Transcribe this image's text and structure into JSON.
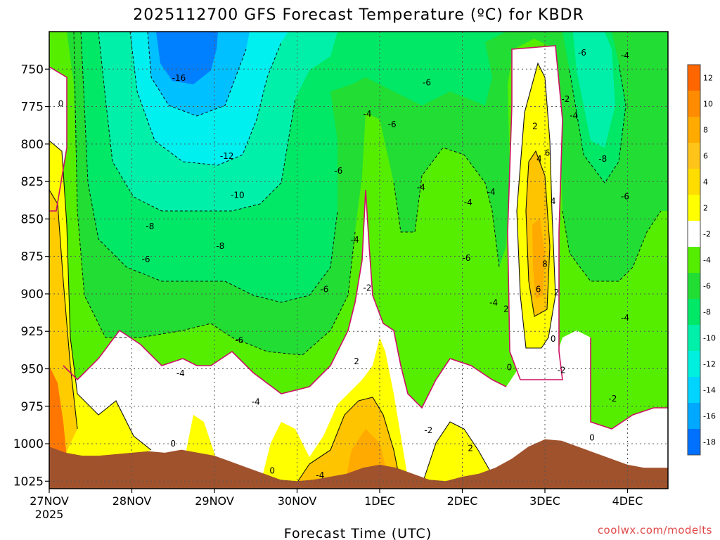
{
  "chart_data": {
    "type": "heatmap",
    "title": "2025112700  GFS Forecast Temperature (ºC) for KBDR",
    "xlabel": "Forecast Time (UTC)",
    "ylabel": "",
    "credit": "coolwx.com/modelts",
    "x_ticks": [
      "27NOV",
      "28NOV",
      "29NOV",
      "30NOV",
      "1DEC",
      "2DEC",
      "3DEC",
      "4DEC"
    ],
    "x_tick_day_offset": [
      0,
      1,
      2,
      3,
      4,
      5,
      6,
      7
    ],
    "x_year": "2025",
    "xlim_days": [
      0,
      7.5
    ],
    "y_ticks": [
      750,
      775,
      800,
      825,
      850,
      875,
      900,
      925,
      950,
      975,
      1000,
      1025
    ],
    "ylim_hpa": [
      1030,
      725
    ],
    "colorbar": {
      "levels": [
        12,
        10,
        8,
        6,
        4,
        2,
        -2,
        -4,
        -6,
        -8,
        -10,
        -12,
        -14,
        -16,
        -18
      ],
      "colors": [
        "#ff6600",
        "#ff8c00",
        "#ffaa00",
        "#ffc41a",
        "#ffdd00",
        "#ffff00",
        "#ffffff",
        "#55ee00",
        "#22dd33",
        "#00e866",
        "#00f0aa",
        "#00f0e0",
        "#00d4ff",
        "#00a8ff",
        "#0070ff"
      ]
    },
    "fill_colors": {
      "ground": "#a0522d",
      "warm": "#ff9900",
      "yellow": "#ffff00",
      "orange_light": "#ffcc00",
      "white": "#ffffff",
      "green_dark": "#55ee00",
      "green": "#22dd33",
      "green_mint": "#00e866",
      "teal": "#00f0aa",
      "cyan": "#00f0ff",
      "blue_light": "#00c0ff",
      "blue": "#0080ff",
      "zero_line": "#cc1166"
    },
    "series": [
      {
        "name": "ground (surface pressure hPa)",
        "x_days": [
          0,
          0.2,
          0.4,
          0.6,
          0.8,
          1.0,
          1.2,
          1.4,
          1.6,
          1.8,
          2.0,
          2.2,
          2.4,
          2.6,
          2.8,
          3.0,
          3.2,
          3.4,
          3.6,
          3.8,
          4.0,
          4.2,
          4.4,
          4.6,
          4.8,
          5.0,
          5.2,
          5.4,
          5.6,
          5.8,
          6.0,
          6.2,
          6.4,
          6.6,
          6.8,
          7.0,
          7.2,
          7.5
        ],
        "values": [
          1002,
          1006,
          1008,
          1008,
          1007,
          1006,
          1005,
          1006,
          1004,
          1006,
          1008,
          1012,
          1016,
          1020,
          1024,
          1025,
          1024,
          1022,
          1020,
          1016,
          1014,
          1016,
          1020,
          1024,
          1025,
          1022,
          1020,
          1016,
          1010,
          1002,
          997,
          998,
          1002,
          1006,
          1010,
          1014,
          1016,
          1016
        ]
      }
    ],
    "contour_labels": [
      {
        "text": "0",
        "day": 0.14,
        "hpa": 773
      },
      {
        "text": "-16",
        "day": 1.57,
        "hpa": 756
      },
      {
        "text": "-12",
        "day": 2.15,
        "hpa": 808
      },
      {
        "text": "-10",
        "day": 2.28,
        "hpa": 834
      },
      {
        "text": "-8",
        "day": 1.22,
        "hpa": 855
      },
      {
        "text": "-8",
        "day": 2.07,
        "hpa": 868
      },
      {
        "text": "-6",
        "day": 1.17,
        "hpa": 877
      },
      {
        "text": "-6",
        "day": 3.33,
        "hpa": 897
      },
      {
        "text": "-6",
        "day": 3.5,
        "hpa": 818
      },
      {
        "text": "-6",
        "day": 4.15,
        "hpa": 787
      },
      {
        "text": "-6",
        "day": 4.57,
        "hpa": 759
      },
      {
        "text": "-6",
        "day": 2.3,
        "hpa": 931
      },
      {
        "text": "-4",
        "day": 1.59,
        "hpa": 953
      },
      {
        "text": "-4",
        "day": 2.5,
        "hpa": 972
      },
      {
        "text": "-4",
        "day": 3.85,
        "hpa": 780
      },
      {
        "text": "-4",
        "day": 3.7,
        "hpa": 864
      },
      {
        "text": "-4",
        "day": 4.5,
        "hpa": 829
      },
      {
        "text": "-4",
        "day": 5.07,
        "hpa": 839
      },
      {
        "text": "-4",
        "day": 5.35,
        "hpa": 832
      },
      {
        "text": "-4",
        "day": 5.38,
        "hpa": 906
      },
      {
        "text": "-6",
        "day": 5.05,
        "hpa": 876
      },
      {
        "text": "-2",
        "day": 6.25,
        "hpa": 770
      },
      {
        "text": "-4",
        "day": 6.35,
        "hpa": 781
      },
      {
        "text": "-6",
        "day": 6.45,
        "hpa": 739
      },
      {
        "text": "-4",
        "day": 6.97,
        "hpa": 741
      },
      {
        "text": "-8",
        "day": 6.7,
        "hpa": 810
      },
      {
        "text": "-6",
        "day": 6.97,
        "hpa": 835
      },
      {
        "text": "-4",
        "day": 6.97,
        "hpa": 916
      },
      {
        "text": "-2",
        "day": 3.85,
        "hpa": 896
      },
      {
        "text": "2",
        "day": 3.72,
        "hpa": 945
      },
      {
        "text": "2",
        "day": 5.1,
        "hpa": 1003
      },
      {
        "text": "-2",
        "day": 4.59,
        "hpa": 991
      },
      {
        "text": "2",
        "day": 5.53,
        "hpa": 910
      },
      {
        "text": "2",
        "day": 5.88,
        "hpa": 788
      },
      {
        "text": "4",
        "day": 5.93,
        "hpa": 810
      },
      {
        "text": "6",
        "day": 6.03,
        "hpa": 806
      },
      {
        "text": "4",
        "day": 6.1,
        "hpa": 838
      },
      {
        "text": "8",
        "day": 6.0,
        "hpa": 880
      },
      {
        "text": "6",
        "day": 5.92,
        "hpa": 897
      },
      {
        "text": "2",
        "day": 6.14,
        "hpa": 899
      },
      {
        "text": "0",
        "day": 6.1,
        "hpa": 930
      },
      {
        "text": "0",
        "day": 5.57,
        "hpa": 949
      },
      {
        "text": "-2",
        "day": 6.2,
        "hpa": 951
      },
      {
        "text": "-2",
        "day": 6.82,
        "hpa": 970
      },
      {
        "text": "0",
        "day": 6.57,
        "hpa": 996
      },
      {
        "text": "0",
        "day": 1.5,
        "hpa": 1000
      },
      {
        "text": "0",
        "day": 2.7,
        "hpa": 1018
      },
      {
        "text": "-4",
        "day": 3.28,
        "hpa": 1021
      }
    ]
  }
}
